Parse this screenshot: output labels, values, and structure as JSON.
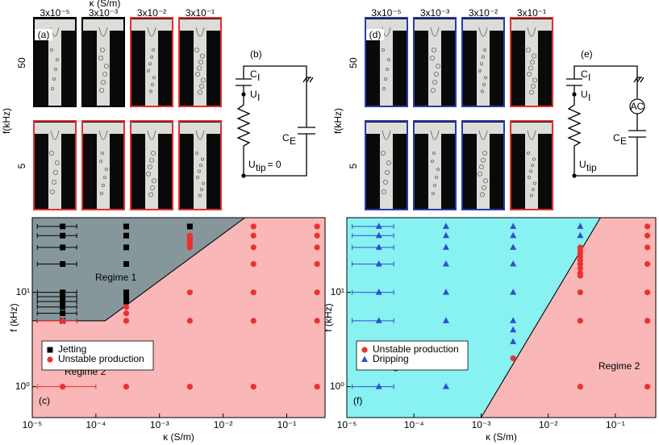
{
  "top_title": "κ (S/m)",
  "panels": [
    {
      "label": "(a)",
      "y_title": "f(kHz)",
      "columns": [
        "3x10⁻⁵",
        "3x10⁻³",
        "3x10⁻²",
        "3x10⁻¹"
      ],
      "rows": [
        {
          "label": "50",
          "borders": [
            "#000000",
            "#000000",
            "#e03030",
            "#e03030"
          ]
        },
        {
          "label": "5",
          "borders": [
            "#e03030",
            "#e03030",
            "#e03030",
            "#e03030"
          ]
        }
      ]
    },
    {
      "label": "(d)",
      "y_title": "f(kHz)",
      "columns": [
        "3x10⁻⁵",
        "3x10⁻³",
        "3x10⁻²",
        "3x10⁻¹"
      ],
      "rows": [
        {
          "label": "50",
          "borders": [
            "#2a3aa8",
            "#2a3aa8",
            "#2a3aa8",
            "#e03030"
          ]
        },
        {
          "label": "5",
          "borders": [
            "#2a3aa8",
            "#2a3aa8",
            "#2a3aa8",
            "#e03030"
          ]
        }
      ]
    }
  ],
  "circuits": [
    {
      "label": "(b)",
      "parts": [
        {
          "main": "C",
          "sub": "I"
        },
        {
          "main": "U",
          "sub": "I"
        },
        {
          "main": "C",
          "sub": "E"
        },
        {
          "main": "U",
          "sub": "tip",
          "tail": "= 0"
        }
      ]
    },
    {
      "label": "(e)",
      "source": "AC",
      "parts": [
        {
          "main": "C",
          "sub": "I"
        },
        {
          "main": "U",
          "sub": "I"
        },
        {
          "main": "C",
          "sub": "E"
        },
        {
          "main": "U",
          "sub": "tip"
        }
      ]
    }
  ],
  "chart_data": [
    {
      "type": "scatter",
      "panel_label": "(c)",
      "xlabel": "κ (S/m)",
      "ylabel": "f (kHz)",
      "xscale": "log",
      "yscale": "log",
      "xlim": [
        1e-05,
        0.4
      ],
      "ylim": [
        0.47,
        62
      ],
      "xticks": [
        {
          "value": 1e-05,
          "label": "10⁻⁵"
        },
        {
          "value": 0.0001,
          "label": "10⁻⁴"
        },
        {
          "value": 0.001,
          "label": "10⁻³"
        },
        {
          "value": 0.01,
          "label": "10⁻²"
        },
        {
          "value": 0.1,
          "label": "10⁻¹"
        }
      ],
      "yticks": [
        {
          "value": 1,
          "label": "10⁰"
        },
        {
          "value": 10,
          "label": "10¹"
        }
      ],
      "legend": "lower left",
      "regions": [
        {
          "name": "Regime 2",
          "color": "#f9b7b7",
          "x": [
            1e-05,
            1e-05,
            0.00014,
            0.022,
            0.4,
            0.4
          ],
          "y": [
            0.47,
            5,
            5,
            62,
            62,
            0.47
          ]
        },
        {
          "name": "Regime 1",
          "color": "#85979a",
          "x": [
            1e-05,
            1e-05,
            0.00014,
            0.022
          ],
          "y": [
            62,
            5,
            5,
            62
          ]
        }
      ],
      "series": [
        {
          "name": "Jetting",
          "color": "#000000",
          "marker": "square",
          "x": [
            3e-05,
            3e-05,
            3e-05,
            3e-05,
            3e-05,
            3e-05,
            3e-05,
            3e-05,
            3e-05,
            3e-05,
            0.0003,
            0.0003,
            0.0003,
            0.0003,
            0.0003,
            0.0003,
            0.0003,
            0.003
          ],
          "values": [
            50,
            40,
            30,
            20,
            10,
            9,
            8,
            7,
            6,
            5,
            50,
            40,
            30,
            20,
            10,
            9,
            8,
            50
          ],
          "xerr": [
            [
              1.8e-05,
              2e-05
            ],
            [
              1.8e-05,
              2e-05
            ],
            [
              1.8e-05,
              2e-05
            ],
            [
              1.8e-05,
              2e-05
            ],
            [
              1.8e-05,
              2e-05
            ],
            [
              1.8e-05,
              2e-05
            ],
            [
              1.8e-05,
              2e-05
            ],
            [
              1.8e-05,
              2e-05
            ],
            [
              1.8e-05,
              2e-05
            ],
            [
              1.8e-05,
              2e-05
            ],
            null,
            null,
            null,
            null,
            null,
            null,
            null,
            null
          ]
        },
        {
          "name": "Unstable production",
          "color": "#ee3030",
          "marker": "circle",
          "x": [
            3e-05,
            3e-05,
            0.0003,
            0.0003,
            0.0003,
            0.0003,
            0.003,
            0.003,
            0.003,
            0.003,
            0.003,
            0.003,
            0.003,
            0.003,
            0.003,
            0.03,
            0.03,
            0.03,
            0.03,
            0.03,
            0.03,
            0.03,
            0.3,
            0.3,
            0.3,
            0.3,
            0.3,
            0.3,
            0.3
          ],
          "values": [
            5,
            1,
            7,
            6,
            5,
            1,
            40,
            38,
            36,
            34,
            32,
            30,
            10,
            5,
            1,
            50,
            40,
            30,
            20,
            10,
            5,
            1,
            50,
            40,
            30,
            20,
            10,
            5,
            1
          ],
          "xerr": [
            [
              1.8e-05,
              2e-05
            ],
            [
              1.8e-05,
              7e-05
            ],
            null,
            null,
            null,
            null,
            null,
            null,
            null,
            null,
            null,
            null,
            null,
            null,
            null,
            null,
            null,
            null,
            null,
            null,
            null,
            null,
            null,
            null,
            null,
            null,
            null,
            null,
            null
          ]
        }
      ]
    },
    {
      "type": "scatter",
      "panel_label": "(f)",
      "xlabel": "κ (S/m)",
      "ylabel": "f (kHz)",
      "xscale": "log",
      "yscale": "log",
      "xlim": [
        1e-05,
        0.4
      ],
      "ylim": [
        0.47,
        62
      ],
      "xticks": [
        {
          "value": 1e-05,
          "label": "10⁻⁵"
        },
        {
          "value": 0.0001,
          "label": "10⁻⁴"
        },
        {
          "value": 0.001,
          "label": "10⁻³"
        },
        {
          "value": 0.01,
          "label": "10⁻²"
        },
        {
          "value": 0.1,
          "label": "10⁻¹"
        }
      ],
      "yticks": [
        {
          "value": 1,
          "label": "10⁰"
        },
        {
          "value": 10,
          "label": "10¹"
        }
      ],
      "legend": "lower left",
      "regions": [
        {
          "name": "Regime 3",
          "color": "#88f1f1",
          "x": [
            1e-05,
            1e-05,
            0.001,
            0.06
          ],
          "y": [
            62,
            0.47,
            0.47,
            62
          ]
        },
        {
          "name": "Regime 2",
          "color": "#f9b7b7",
          "x": [
            0.001,
            0.4,
            0.4,
            0.06
          ],
          "y": [
            0.47,
            0.47,
            62,
            62
          ]
        }
      ],
      "series": [
        {
          "name": "Unstable production",
          "color": "#ee3030",
          "marker": "circle",
          "x": [
            0.003,
            0.03,
            0.03,
            0.03,
            0.03,
            0.03,
            0.03,
            0.03,
            0.03,
            0.03,
            0.03,
            0.03,
            0.03,
            0.3,
            0.3,
            0.3,
            0.3,
            0.3,
            0.3,
            0.3
          ],
          "values": [
            2,
            30,
            28,
            26,
            24,
            22,
            20,
            18,
            16,
            15,
            10,
            5,
            1,
            50,
            40,
            30,
            20,
            10,
            5,
            1
          ]
        },
        {
          "name": "Dripping",
          "color": "#2f4fd0",
          "marker": "triangle",
          "x": [
            3e-05,
            3e-05,
            3e-05,
            3e-05,
            3e-05,
            3e-05,
            3e-05,
            0.0003,
            0.0003,
            0.0003,
            0.0003,
            0.0003,
            0.0003,
            0.0003,
            0.003,
            0.003,
            0.003,
            0.003,
            0.003,
            0.003,
            0.003,
            0.003,
            0.03,
            0.03
          ],
          "values": [
            50,
            40,
            30,
            20,
            10,
            5,
            1,
            50,
            40,
            30,
            20,
            10,
            5,
            1,
            50,
            40,
            30,
            20,
            10,
            5,
            4,
            3,
            50,
            40
          ],
          "xerr": [
            [
              1.8e-05,
              2e-05
            ],
            [
              1.8e-05,
              2e-05
            ],
            [
              1.8e-05,
              2e-05
            ],
            [
              1.8e-05,
              2e-05
            ],
            [
              1.8e-05,
              2e-05
            ],
            [
              1.8e-05,
              2e-05
            ],
            [
              1.8e-05,
              2e-05
            ],
            null,
            null,
            null,
            null,
            null,
            null,
            null,
            null,
            null,
            null,
            null,
            null,
            null,
            null,
            null,
            null,
            null
          ]
        }
      ]
    }
  ]
}
